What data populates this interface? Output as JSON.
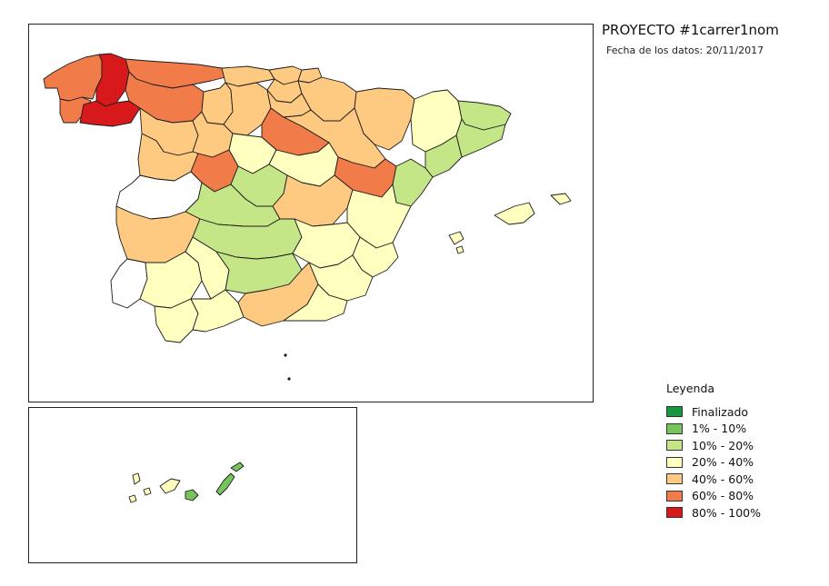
{
  "header": {
    "title": "PROYECTO #1carrer1nom",
    "date_line": "Fecha de los datos: 20/11/2017"
  },
  "legend": {
    "title": "Leyenda",
    "items": [
      {
        "label": "Finalizado",
        "color": "#1a9641"
      },
      {
        "label": "1% - 10%",
        "color": "#77c35c"
      },
      {
        "label": "10% - 20%",
        "color": "#c4e687"
      },
      {
        "label": "20% - 40%",
        "color": "#ffffc0"
      },
      {
        "label": "40% - 60%",
        "color": "#fec980"
      },
      {
        "label": "60% - 80%",
        "color": "#f17c4a"
      },
      {
        "label": "80% - 100%",
        "color": "#d7191c"
      }
    ]
  },
  "map": {
    "colors": {
      "none": "#ffffff",
      "c1": "#77c35c",
      "c2": "#c4e687",
      "c3": "#ffffc0",
      "c4": "#fec980",
      "c5": "#f17c4a",
      "c6": "#d7191c"
    }
  }
}
